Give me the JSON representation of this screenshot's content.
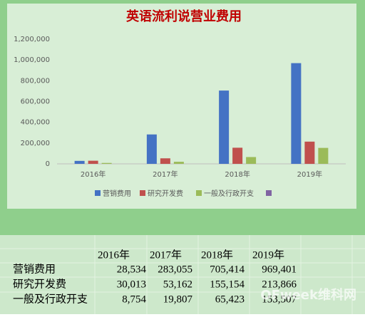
{
  "chart_data": {
    "type": "bar",
    "title": "英语流利说营业费用",
    "categories": [
      "2016年",
      "2017年",
      "2018年",
      "2019年"
    ],
    "series": [
      {
        "name": "营销费用",
        "color": "#4472c4",
        "values": [
          28534,
          283055,
          705414,
          969401
        ]
      },
      {
        "name": "研究开发费",
        "color": "#c0504d",
        "values": [
          30013,
          53162,
          155154,
          213866
        ]
      },
      {
        "name": "一般及行政开支",
        "color": "#9bbb59",
        "values": [
          8754,
          19807,
          65423,
          153507
        ]
      }
    ],
    "ylim": [
      0,
      1200000
    ],
    "yticks": [
      0,
      {
        "value": 200000,
        "label": "200,000"
      },
      {
        "value": 400000,
        "label": "400,000"
      },
      {
        "value": 600000,
        "label": "600,000"
      },
      {
        "value": 800000,
        "label": "800,000"
      },
      {
        "value": 1000000,
        "label": "1,000,000"
      },
      {
        "value": 1200000,
        "label": "1,200,000"
      }
    ],
    "grid": false
  },
  "table": {
    "header": [
      "2016年",
      "2017年",
      "2018年",
      "2019年"
    ],
    "rows": [
      [
        "营销费用",
        "28,534",
        "283,055",
        "705,414",
        "969,401"
      ],
      [
        "研究开发费",
        "30,013",
        "53,162",
        "155,154",
        "213,866"
      ],
      [
        "一般及行政开支",
        "8,754",
        "19,807",
        "65,423",
        "153,507"
      ]
    ]
  },
  "watermark": "OFweek维科网"
}
